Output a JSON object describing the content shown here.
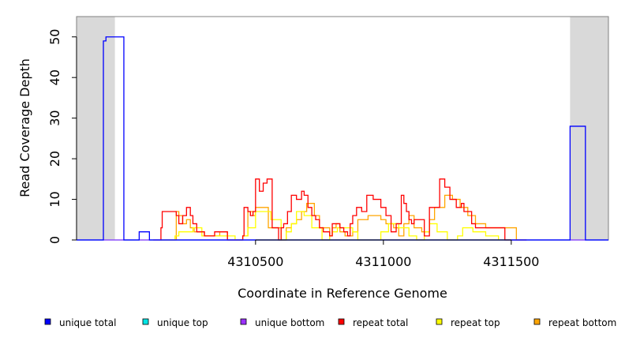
{
  "chart_data": {
    "type": "line",
    "title": "",
    "xlabel": "Coordinate in Reference Genome",
    "ylabel": "Read Coverage Depth",
    "xlim": [
      4309800,
      4311880
    ],
    "ylim": [
      0,
      55
    ],
    "x_ticks": [
      4310500,
      4311000,
      4311500
    ],
    "x_tick_labels": [
      "4310500",
      "4311000",
      "4311500"
    ],
    "y_ticks": [
      0,
      10,
      20,
      30,
      40,
      50
    ],
    "y_tick_labels": [
      "0",
      "10",
      "20",
      "30",
      "40",
      "50"
    ],
    "grid": false,
    "step": true,
    "legend_position": "bottom",
    "shaded_regions": [
      {
        "from": 4309800,
        "to": 4309950,
        "color": "#d9d9d9"
      },
      {
        "from": 4311730,
        "to": 4311880,
        "color": "#d9d9d9"
      }
    ],
    "series": [
      {
        "name": "unique total",
        "color": "#0000ff",
        "x": [
          4309800,
          4309900,
          4309905,
          4309915,
          4309955,
          4309985,
          4310045,
          4310085,
          4311730,
          4311790,
          4311880
        ],
        "y": [
          0,
          0,
          49,
          50,
          50,
          0,
          2,
          0,
          28,
          0,
          0
        ]
      },
      {
        "name": "unique top",
        "color": "#00e5e5",
        "x": [
          4309800,
          4311880
        ],
        "y": [
          0,
          0
        ]
      },
      {
        "name": "unique bottom",
        "color": "#9b30ff",
        "x": [
          4309800,
          4311880
        ],
        "y": [
          0,
          0
        ]
      },
      {
        "name": "repeat total",
        "color": "#ff0000",
        "x": [
          4310100,
          4310130,
          4310135,
          4310185,
          4310190,
          4310200,
          4310215,
          4310230,
          4310245,
          4310255,
          4310270,
          4310300,
          4310320,
          4310340,
          4310370,
          4310390,
          4310450,
          4310455,
          4310470,
          4310480,
          4310490,
          4310500,
          4310515,
          4310530,
          4310545,
          4310565,
          4310575,
          4310590,
          4310600,
          4310610,
          4310625,
          4310640,
          4310660,
          4310680,
          4310690,
          4310705,
          4310720,
          4310735,
          4310750,
          4310765,
          4310790,
          4310800,
          4310815,
          4310830,
          4310845,
          4310860,
          4310870,
          4310880,
          4310895,
          4310915,
          4310935,
          4310960,
          4310990,
          4311010,
          4311030,
          4311050,
          4311070,
          4311080,
          4311090,
          4311100,
          4311110,
          4311120,
          4311130,
          4311160,
          4311180,
          4311200,
          4311220,
          4311240,
          4311260,
          4311275,
          4311285,
          4311300,
          4311305,
          4311315,
          4311330,
          4311345,
          4311360,
          4311375,
          4311400,
          4311410,
          4311420,
          4311440,
          4311450,
          4311460,
          4311475,
          4311520,
          4311560
        ],
        "y": [
          0,
          3,
          7,
          7,
          6,
          4,
          6,
          8,
          6,
          4,
          2,
          1,
          1,
          2,
          2,
          0,
          1,
          8,
          7,
          6,
          7,
          15,
          12,
          14,
          15,
          3,
          3,
          0,
          3,
          4,
          7,
          11,
          10,
          12,
          11,
          8,
          6,
          5,
          3,
          2,
          1,
          4,
          4,
          3,
          2,
          1,
          4,
          6,
          8,
          7,
          11,
          10,
          8,
          6,
          2,
          4,
          11,
          9,
          7,
          5,
          4,
          5,
          5,
          1,
          8,
          8,
          15,
          13,
          10,
          10,
          8,
          8,
          9,
          7,
          7,
          4,
          3,
          3,
          3,
          3,
          3,
          3,
          3,
          3,
          0,
          0,
          0
        ]
      },
      {
        "name": "repeat top",
        "color": "#ffff00",
        "x": [
          4310130,
          4310185,
          4310200,
          4310255,
          4310290,
          4310420,
          4310450,
          4310470,
          4310500,
          4310560,
          4310600,
          4310620,
          4310640,
          4310660,
          4310690,
          4310720,
          4310760,
          4310790,
          4310800,
          4310820,
          4310880,
          4310900,
          4310940,
          4310990,
          4311020,
          4311060,
          4311100,
          4311130,
          4311160,
          4311180,
          4311210,
          4311250,
          4311290,
          4311310,
          4311340,
          4311350,
          4311400,
          4311450
        ],
        "y": [
          0,
          1,
          2,
          3,
          1,
          0,
          1,
          3,
          7,
          5,
          0,
          2,
          4,
          7,
          6,
          3,
          0,
          1,
          2,
          3,
          2,
          0,
          0,
          2,
          4,
          3,
          1,
          0,
          2,
          4,
          2,
          0,
          1,
          3,
          3,
          2,
          1,
          0
        ]
      },
      {
        "name": "repeat bottom",
        "color": "#ffa500",
        "x": [
          4310130,
          4310190,
          4310200,
          4310215,
          4310230,
          4310245,
          4310260,
          4310300,
          4310340,
          4310360,
          4310390,
          4310450,
          4310470,
          4310490,
          4310500,
          4310550,
          4310600,
          4310620,
          4310640,
          4310660,
          4310680,
          4310700,
          4310730,
          4310750,
          4310790,
          4310800,
          4310815,
          4310830,
          4310850,
          4310880,
          4310900,
          4310940,
          4310990,
          4311010,
          4311040,
          4311060,
          4311080,
          4311100,
          4311120,
          4311150,
          4311180,
          4311200,
          4311240,
          4311270,
          4311300,
          4311330,
          4311360,
          4311400,
          4311450,
          4311470,
          4311520,
          4311560
        ],
        "y": [
          0,
          7,
          6,
          4,
          5,
          3,
          2,
          1,
          1,
          2,
          0,
          1,
          7,
          6,
          8,
          3,
          0,
          3,
          4,
          5,
          7,
          9,
          6,
          3,
          1,
          3,
          4,
          2,
          1,
          2,
          5,
          6,
          5,
          4,
          3,
          1,
          4,
          6,
          3,
          2,
          5,
          8,
          11,
          10,
          8,
          6,
          4,
          3,
          3,
          3,
          0,
          0
        ]
      }
    ]
  }
}
